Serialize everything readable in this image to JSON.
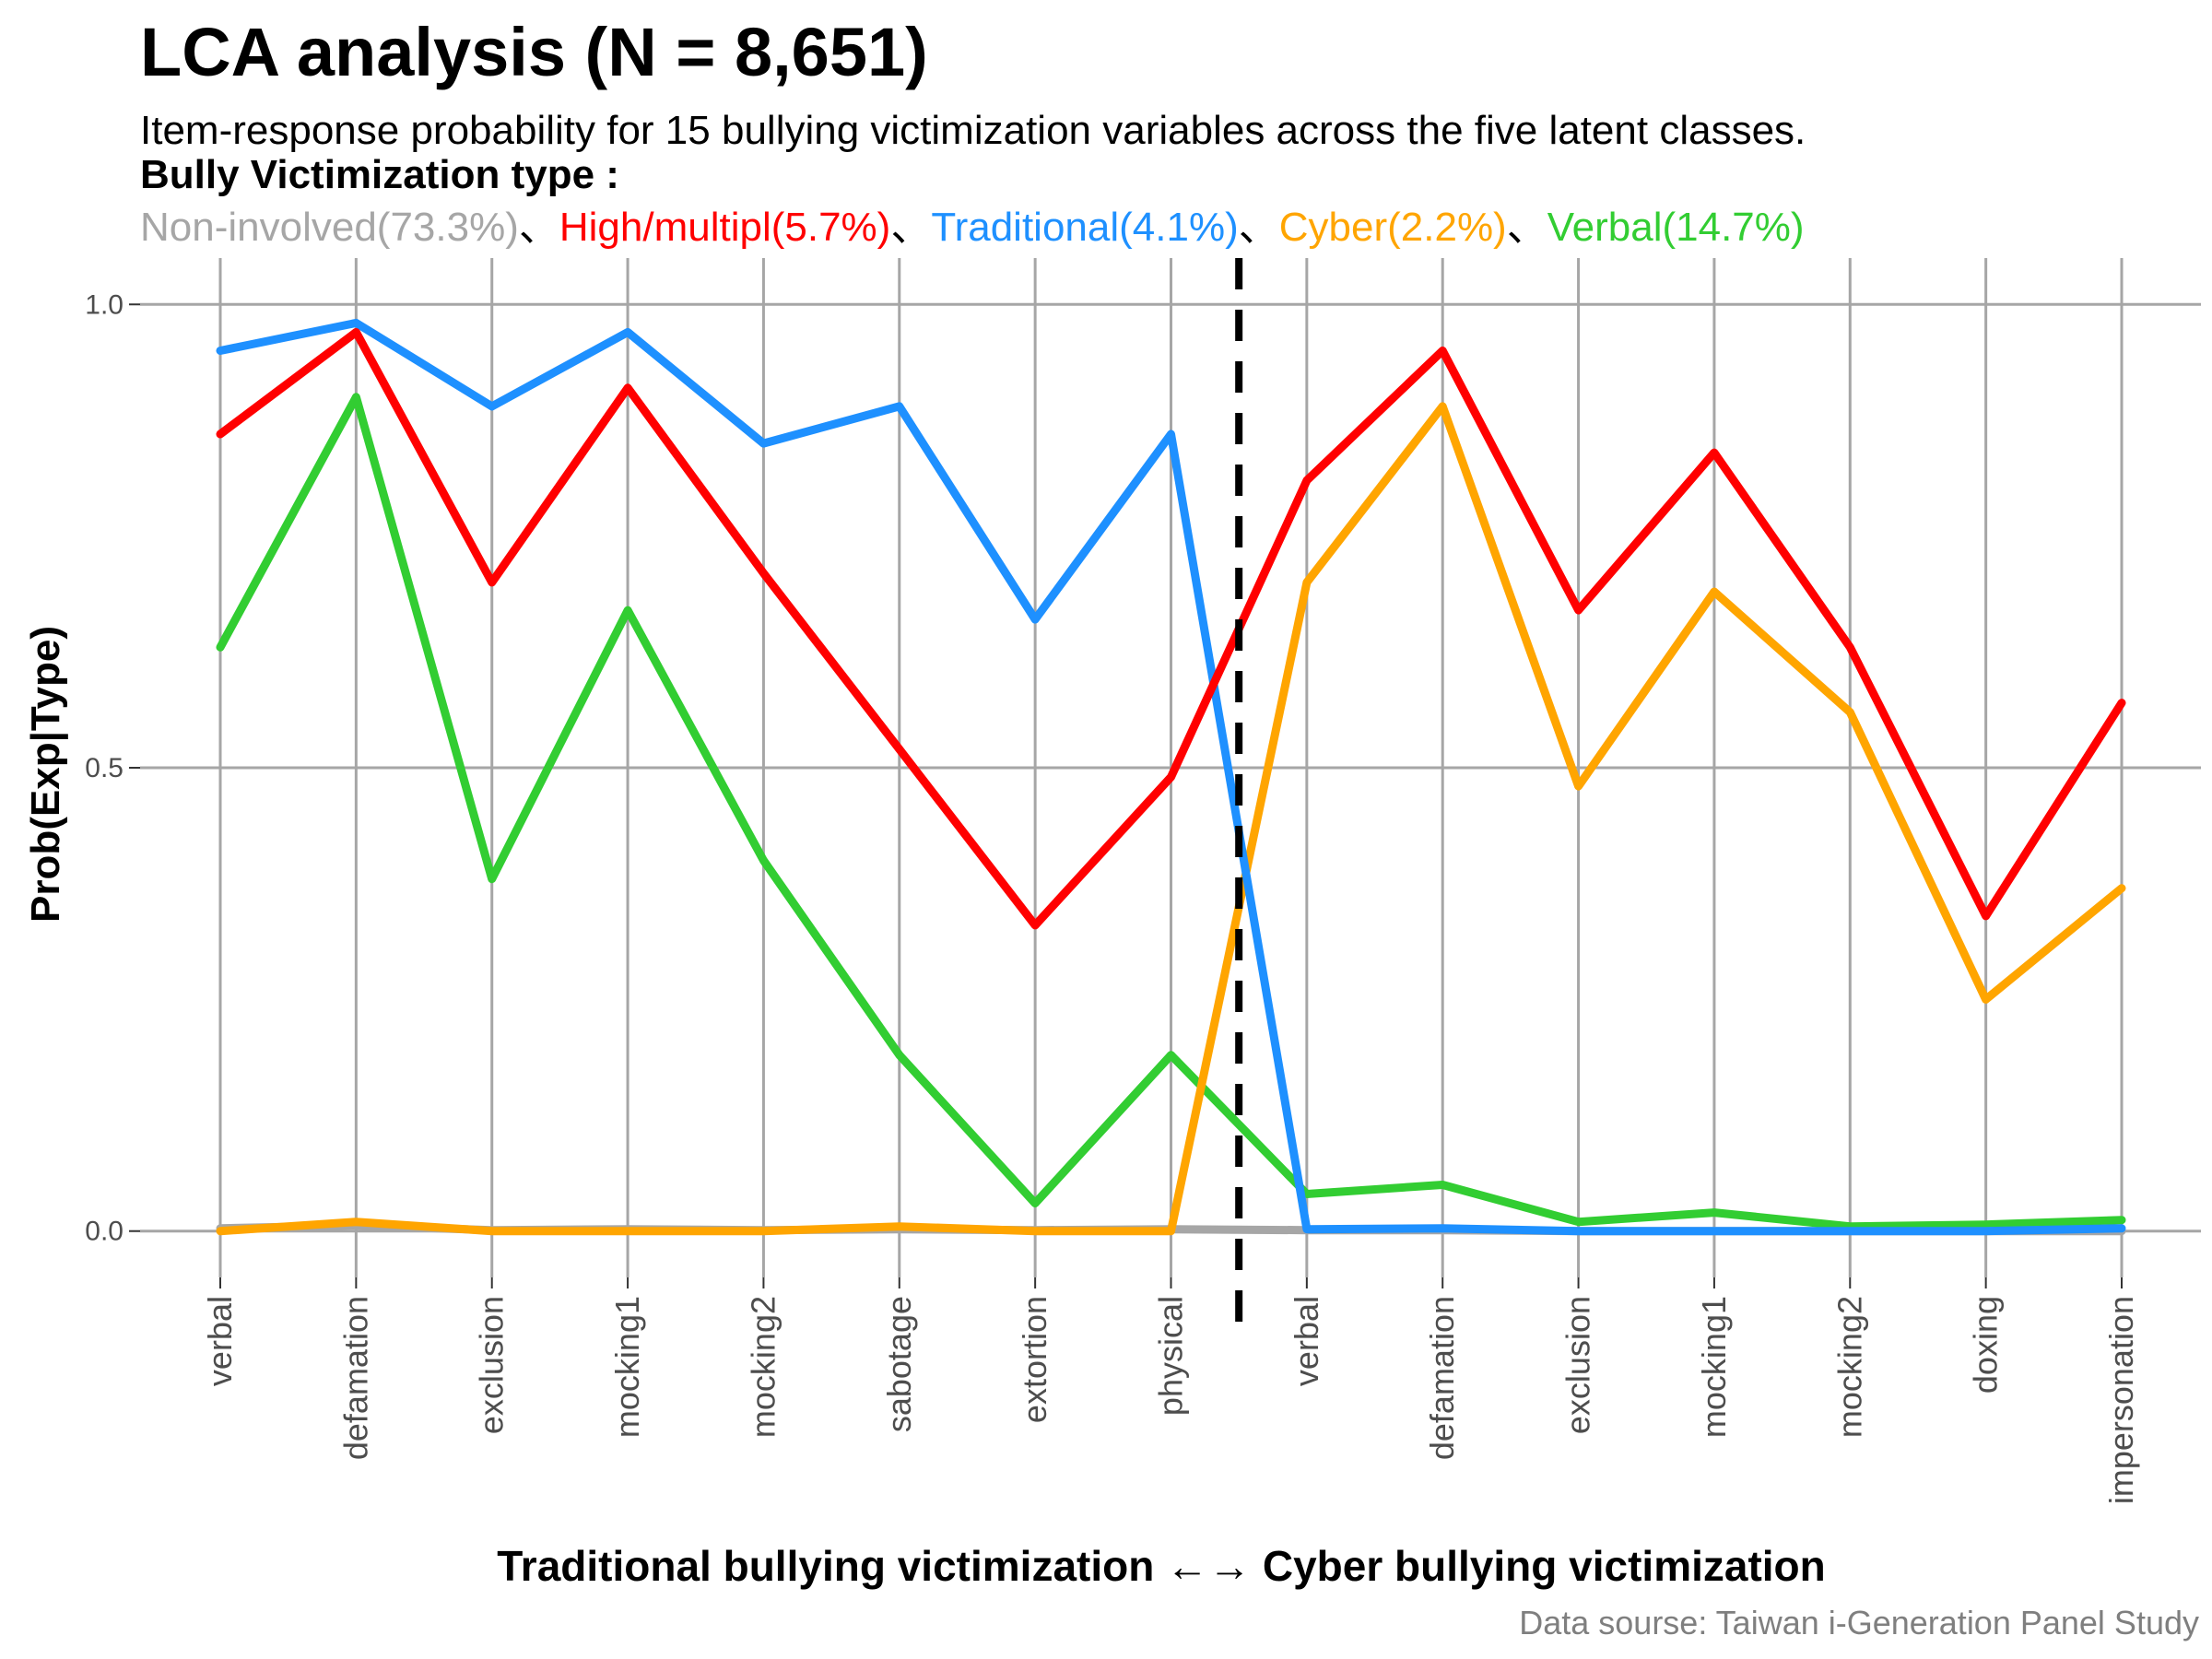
{
  "title": "LCA analysis (N = 8,651)",
  "subtitle": "Item-response probability for 15 bullying victimization variables across the five latent classes.",
  "legend_heading": "Bully Victimization type :",
  "legend_separator": "、",
  "legend_items": [
    {
      "label": "Non-involved(73.3%)",
      "color": "#A6A6A6"
    },
    {
      "label": "High/multipl(5.7%)",
      "color": "#FF0000"
    },
    {
      "label": "Traditional(4.1%)",
      "color": "#1E90FF"
    },
    {
      "label": "Cyber(2.2%)",
      "color": "#FFA500"
    },
    {
      "label": "Verbal(14.7%)",
      "color": "#32CD32"
    }
  ],
  "caption": "Data sourse: Taiwan i-Generation Panel Study",
  "chart_data": {
    "type": "line",
    "xlabel": "Traditional bullying victimization ←→ Cyber bullying victimization",
    "ylabel": "Prob(Exp|Type)",
    "categories": [
      "verbal",
      "defamation",
      "exclusion",
      "mocking1",
      "mocking2",
      "sabotage",
      "extortion",
      "physical",
      "verbal",
      "defamation",
      "exclusion",
      "mocking1",
      "mocking2",
      "doxing",
      "impersonation"
    ],
    "ylim": [
      -0.05,
      1.05
    ],
    "yticks": [
      "0.0",
      "0.5",
      "1.0"
    ],
    "ytick_values": [
      0,
      0.5,
      1.0
    ],
    "divider_after_index": 7,
    "grid": true,
    "series": [
      {
        "name": "Non-involved(73.3%)",
        "color": "#A6A6A6",
        "values": [
          0.003,
          0.006,
          0.001,
          0.002,
          0.001,
          0.002,
          0.001,
          0.002,
          0.001,
          0.001,
          0.0,
          0.0,
          0.0,
          0.0,
          0.0
        ]
      },
      {
        "name": "Verbal(14.7%)",
        "color": "#32CD32",
        "values": [
          0.63,
          0.9,
          0.38,
          0.67,
          0.4,
          0.19,
          0.03,
          0.19,
          0.04,
          0.05,
          0.01,
          0.02,
          0.005,
          0.007,
          0.012
        ]
      },
      {
        "name": "Cyber(2.2%)",
        "color": "#FFA500",
        "values": [
          0.0,
          0.01,
          0.0,
          0.0,
          0.0,
          0.005,
          0.0,
          0.0,
          0.7,
          0.89,
          0.48,
          0.69,
          0.56,
          0.25,
          0.37
        ]
      },
      {
        "name": "Traditional(4.1%)",
        "color": "#1E90FF",
        "values": [
          0.95,
          0.98,
          0.89,
          0.97,
          0.85,
          0.89,
          0.66,
          0.86,
          0.002,
          0.003,
          0.0,
          0.0,
          0.0,
          0.0,
          0.003
        ]
      },
      {
        "name": "High/multipl(5.7%)",
        "color": "#FF0000",
        "values": [
          0.86,
          0.97,
          0.7,
          0.91,
          0.71,
          0.52,
          0.33,
          0.49,
          0.81,
          0.95,
          0.67,
          0.84,
          0.63,
          0.34,
          0.57
        ]
      }
    ]
  }
}
